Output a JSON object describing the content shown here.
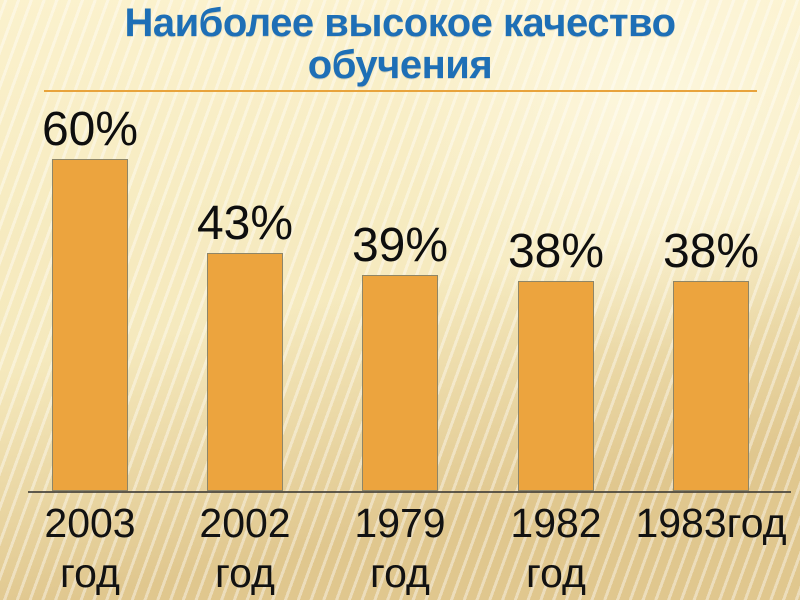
{
  "slide": {
    "title": "Наиболее высокое качество обучения"
  },
  "chart_data": {
    "type": "bar",
    "title": "Наиболее высокое качество обучения",
    "categories": [
      "2003 год",
      "2002 год",
      "1979 год",
      "1982 год",
      "1983год"
    ],
    "category_display": [
      "2003\nгод",
      "2002\nгод",
      "1979\nгод",
      "1982\nгод",
      "1983год"
    ],
    "values": [
      60,
      43,
      39,
      38,
      38
    ],
    "value_labels": [
      "60%",
      "43%",
      "39%",
      "38%",
      "38%"
    ],
    "xlabel": "",
    "ylabel": "",
    "ylim": [
      0,
      100
    ],
    "grid": false,
    "legend": false,
    "colors": {
      "bar_fill": "#ECA43E",
      "bar_border": "#8E8668",
      "title_text": "#1E6FB6",
      "accent_line": "#E8A33C",
      "label_text": "#121212",
      "background": "#F5E9BD"
    }
  }
}
